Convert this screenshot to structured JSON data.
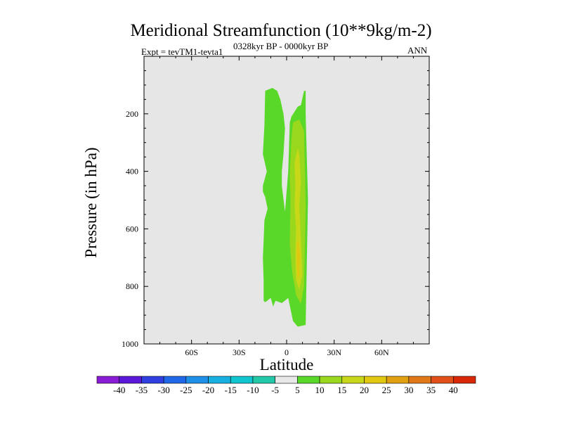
{
  "chart_data": {
    "type": "contour",
    "title": "Meridional Streamfunction (10**9kg/m-2)",
    "subtitle_left": "Expt = tevTM1-tevta1",
    "subtitle_center": "0328kyr BP - 0000kyr BP",
    "subtitle_right": "ANN",
    "xlabel": "Latitude",
    "ylabel": "Pressure (in hPa)",
    "xlim": [
      -90,
      90
    ],
    "ylim": [
      1000,
      0
    ],
    "x_ticks": [
      {
        "value": -60,
        "label": "60S"
      },
      {
        "value": -30,
        "label": "30S"
      },
      {
        "value": 0,
        "label": "0"
      },
      {
        "value": 30,
        "label": "30N"
      },
      {
        "value": 60,
        "label": "60N"
      }
    ],
    "y_ticks": [
      {
        "value": 200,
        "label": "200"
      },
      {
        "value": 400,
        "label": "400"
      },
      {
        "value": 600,
        "label": "600"
      },
      {
        "value": 800,
        "label": "800"
      },
      {
        "value": 1000,
        "label": "1000"
      }
    ],
    "background_color": "#e6e6e6",
    "colorbar": {
      "labels": [
        "-40",
        "-35",
        "-30",
        "-25",
        "-20",
        "-15",
        "-10",
        "-5",
        "5",
        "10",
        "15",
        "20",
        "25",
        "30",
        "35",
        "40"
      ],
      "colors": [
        "#8a1cd6",
        "#5a18d8",
        "#2f3fe0",
        "#1f68e8",
        "#1e90e6",
        "#17b0e0",
        "#10c4d0",
        "#22c8a8",
        "#e8e8e8",
        "#5ad82a",
        "#9ad81e",
        "#c8d818",
        "#e0c810",
        "#e0a010",
        "#e07818",
        "#e05018",
        "#d82808"
      ]
    },
    "regions": [
      {
        "level": "5 to 10",
        "color": "#5ad82a",
        "points": [
          [
            -13.5,
            120
          ],
          [
            -14,
            240
          ],
          [
            -15,
            340
          ],
          [
            -12.5,
            400
          ],
          [
            -15,
            450
          ],
          [
            -15,
            470
          ],
          [
            -13.5,
            490
          ],
          [
            -12,
            530
          ],
          [
            -14,
            570
          ],
          [
            -14.5,
            640
          ],
          [
            -15,
            700
          ],
          [
            -14.5,
            780
          ],
          [
            -14.5,
            850
          ],
          [
            -13.5,
            855
          ],
          [
            -10,
            840
          ],
          [
            -8.5,
            870
          ],
          [
            -7,
            850
          ],
          [
            -3,
            858
          ],
          [
            1,
            840
          ],
          [
            4,
            920
          ],
          [
            7,
            940
          ],
          [
            12,
            934
          ],
          [
            13.5,
            500
          ],
          [
            12,
            200
          ],
          [
            12,
            120
          ],
          [
            11,
            120
          ],
          [
            9,
            170
          ],
          [
            7,
            175
          ],
          [
            3,
            210
          ],
          [
            2,
            230
          ],
          [
            1,
            400
          ],
          [
            0,
            470
          ],
          [
            -1,
            540
          ],
          [
            -3,
            450
          ],
          [
            -3,
            400
          ],
          [
            -2,
            340
          ],
          [
            -1,
            250
          ],
          [
            -2,
            200
          ],
          [
            -4,
            150
          ],
          [
            -6,
            120
          ],
          [
            -9,
            110
          ]
        ]
      },
      {
        "level": "10 to 15",
        "color": "#9ad81e",
        "points": [
          [
            3,
            290
          ],
          [
            4,
            230
          ],
          [
            8,
            220
          ],
          [
            11,
            260
          ],
          [
            12,
            520
          ],
          [
            11,
            800
          ],
          [
            9,
            860
          ],
          [
            6,
            830
          ],
          [
            3.5,
            750
          ],
          [
            2,
            650
          ],
          [
            2.5,
            500
          ],
          [
            2,
            420
          ]
        ]
      },
      {
        "level": "15 to 20",
        "color": "#c8d818",
        "points": [
          [
            5,
            370
          ],
          [
            7,
            320
          ],
          [
            8,
            340
          ],
          [
            9,
            440
          ],
          [
            8,
            520
          ],
          [
            9,
            640
          ],
          [
            10,
            760
          ],
          [
            8,
            810
          ],
          [
            6,
            780
          ],
          [
            5.5,
            700
          ],
          [
            6,
            600
          ],
          [
            5,
            520
          ],
          [
            5.5,
            450
          ]
        ]
      },
      {
        "level": "20 to 25",
        "color": "#e0c810",
        "points": [
          [
            6.5,
            650
          ],
          [
            7.5,
            640
          ],
          [
            8.5,
            690
          ],
          [
            8,
            760
          ],
          [
            7,
            770
          ],
          [
            6.5,
            720
          ]
        ]
      }
    ]
  }
}
